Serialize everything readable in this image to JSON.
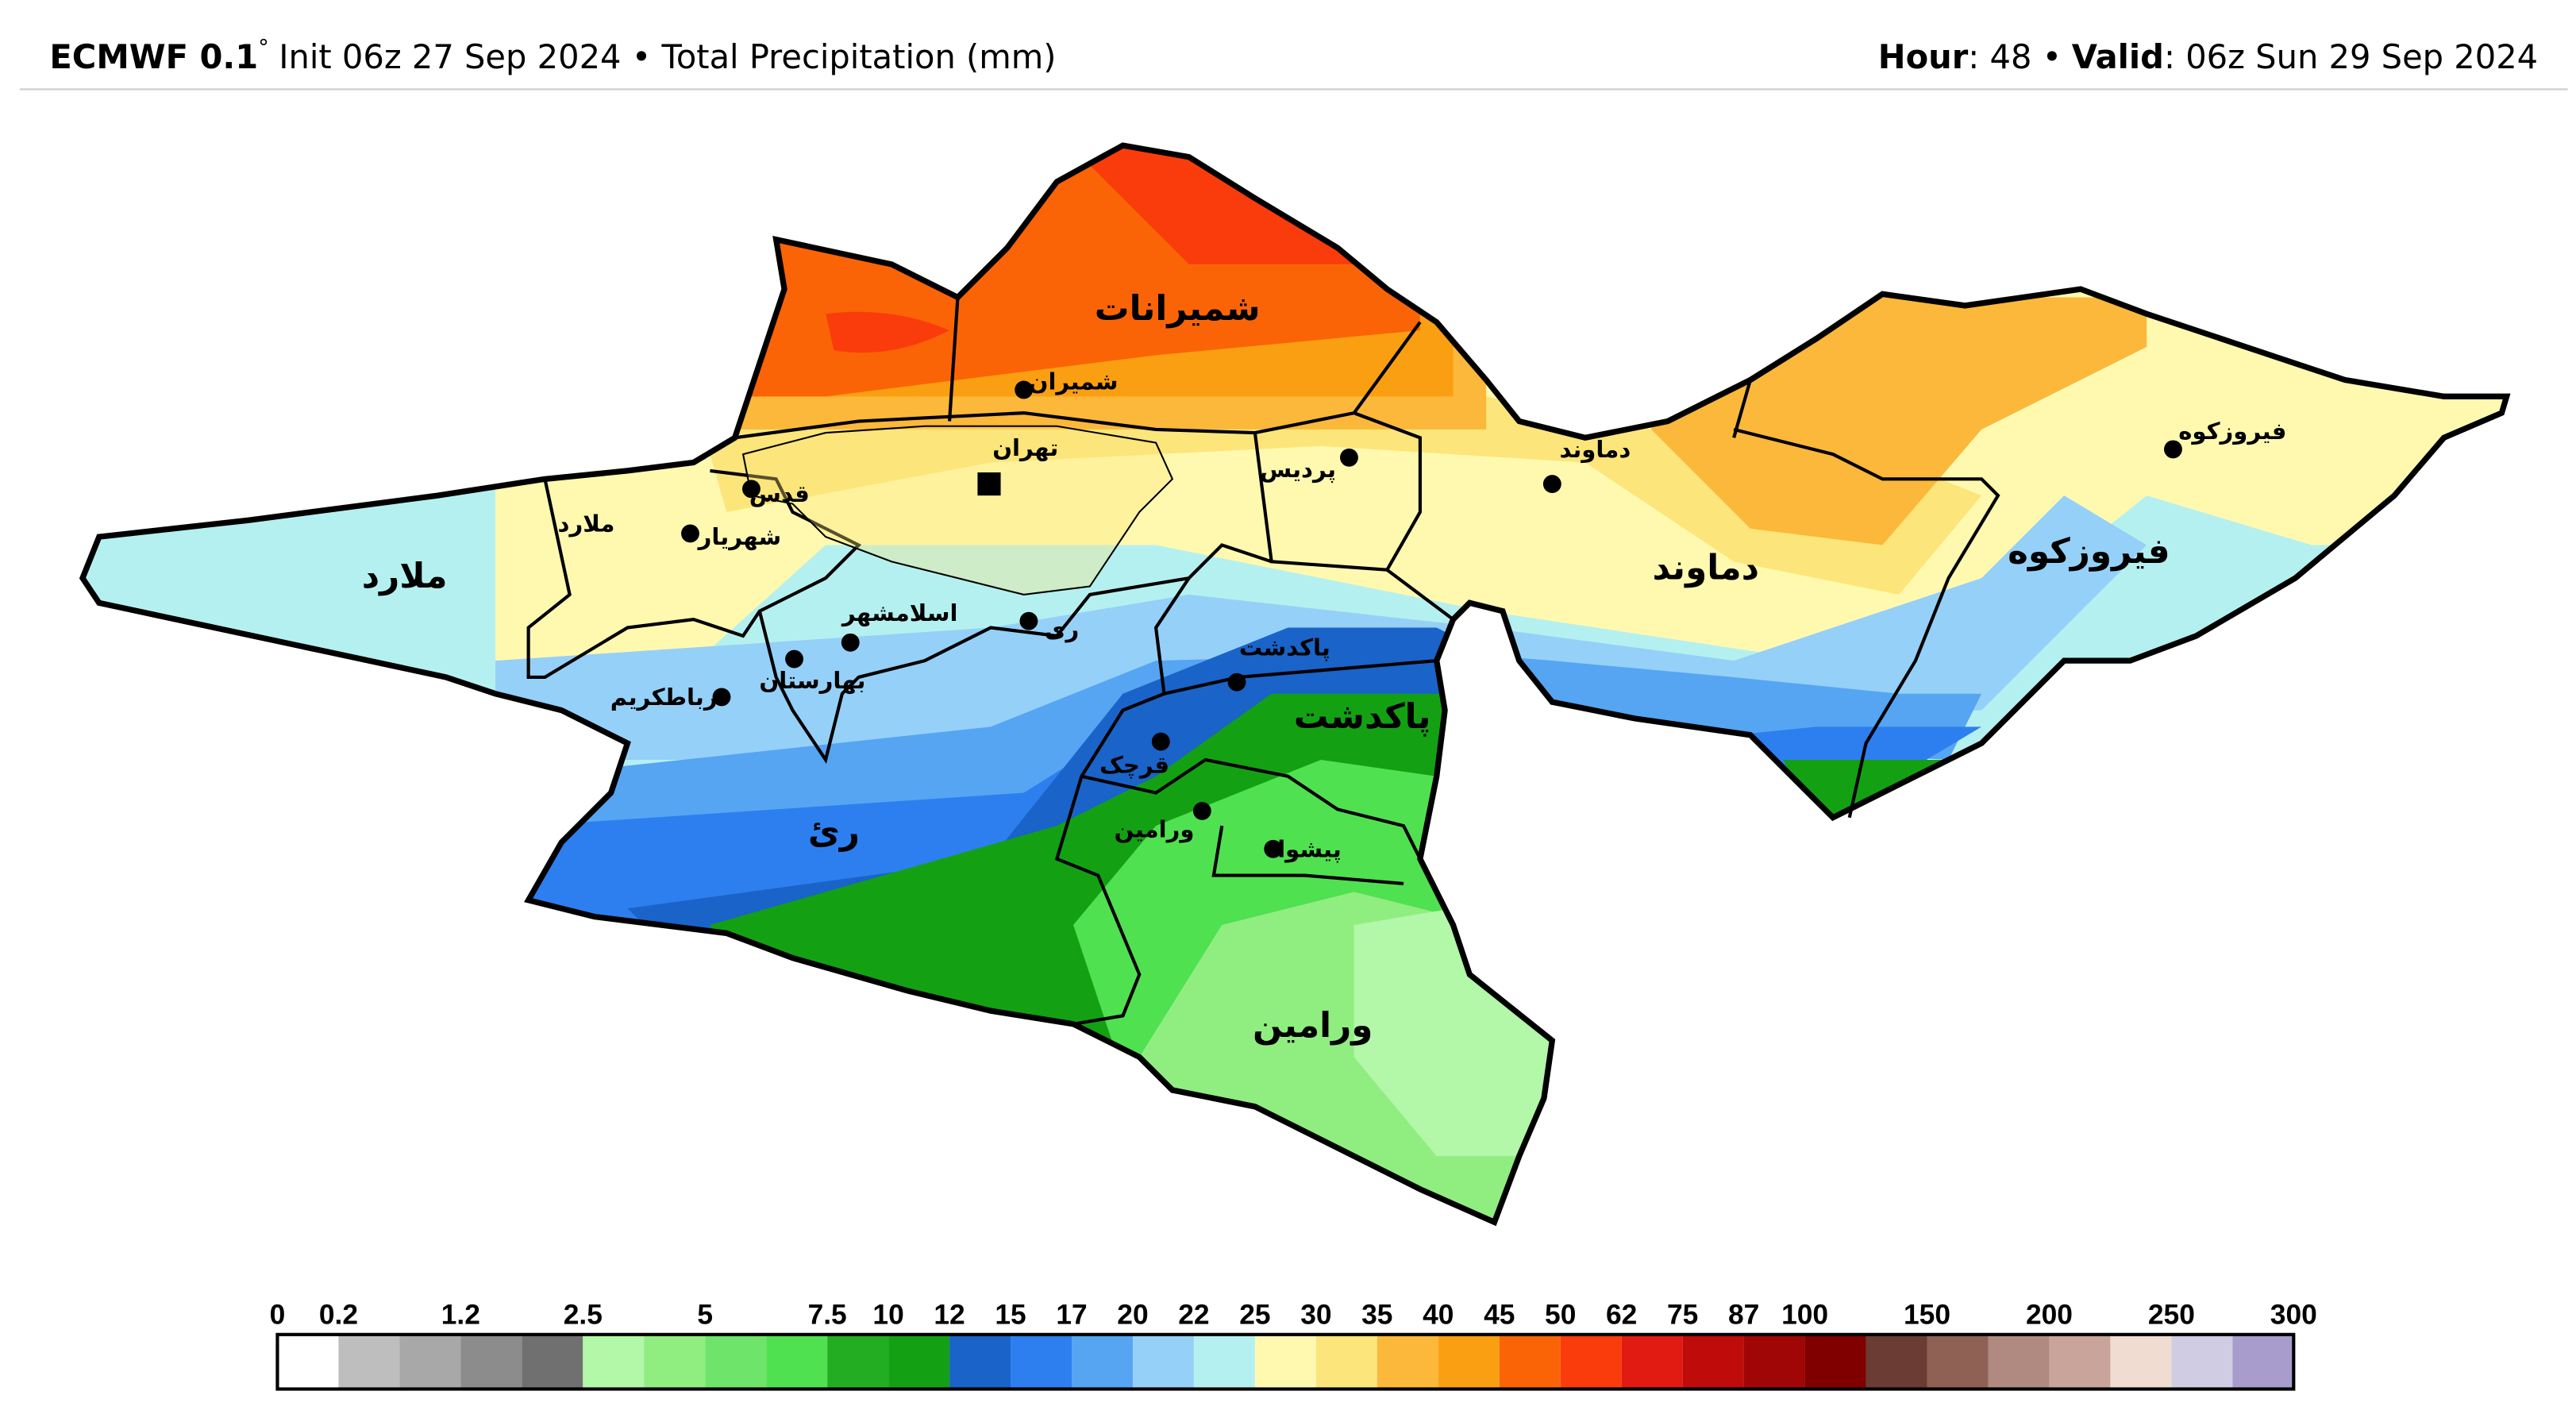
{
  "header": {
    "model": "ECMWF 0.1",
    "degree": "°",
    "init": "Init 06z 27 Sep 2024 • Total Precipitation (mm)",
    "hour_label": "Hour",
    "hour": ": 48 •",
    "valid_label": "Valid",
    "valid": ": 06z Sun 29 Sep 2024"
  },
  "map": {
    "counties": [
      "شمیرانات",
      "ملارد",
      "دماوند",
      "فیروزکوه",
      "پاکدشت",
      "ریٔ",
      "ورامین"
    ],
    "cities": [
      "شمیران",
      "تهران",
      "پردیس",
      "دماوند",
      "فیروزکوه",
      "ملارد",
      "شهریار",
      "قدس",
      "اسلامشهر",
      "ری",
      "بهارستان",
      "رباطکریم",
      "پاکدشت",
      "قرچک",
      "ورامین",
      "پیشوا"
    ]
  },
  "colorbar": {
    "ticks": [
      0,
      0.2,
      1.2,
      2.5,
      5,
      7.5,
      10,
      12,
      15,
      17,
      20,
      22,
      25,
      30,
      35,
      40,
      45,
      50,
      62,
      75,
      87,
      100,
      150,
      200,
      250,
      300
    ],
    "colors": [
      "#ffffff",
      "#bebebe",
      "#a8a8a8",
      "#8c8c8c",
      "#707070",
      "#b3f7a8",
      "#90ee80",
      "#6ee56a",
      "#50e150",
      "#23ad23",
      "#13a113",
      "#1a63c8",
      "#2d7ff0",
      "#55a5f2",
      "#95d0f8",
      "#b5f0f0",
      "#fff9b0",
      "#fce57a",
      "#fbb83a",
      "#fb9f12",
      "#fb6406",
      "#fa3c0c",
      "#e11b12",
      "#c00b0b",
      "#a00606",
      "#800000",
      "#6b3c33",
      "#8f6155",
      "#b08a80",
      "#c8a49a",
      "#f0dcd0",
      "#d0cce4",
      "#a89ccc"
    ]
  }
}
